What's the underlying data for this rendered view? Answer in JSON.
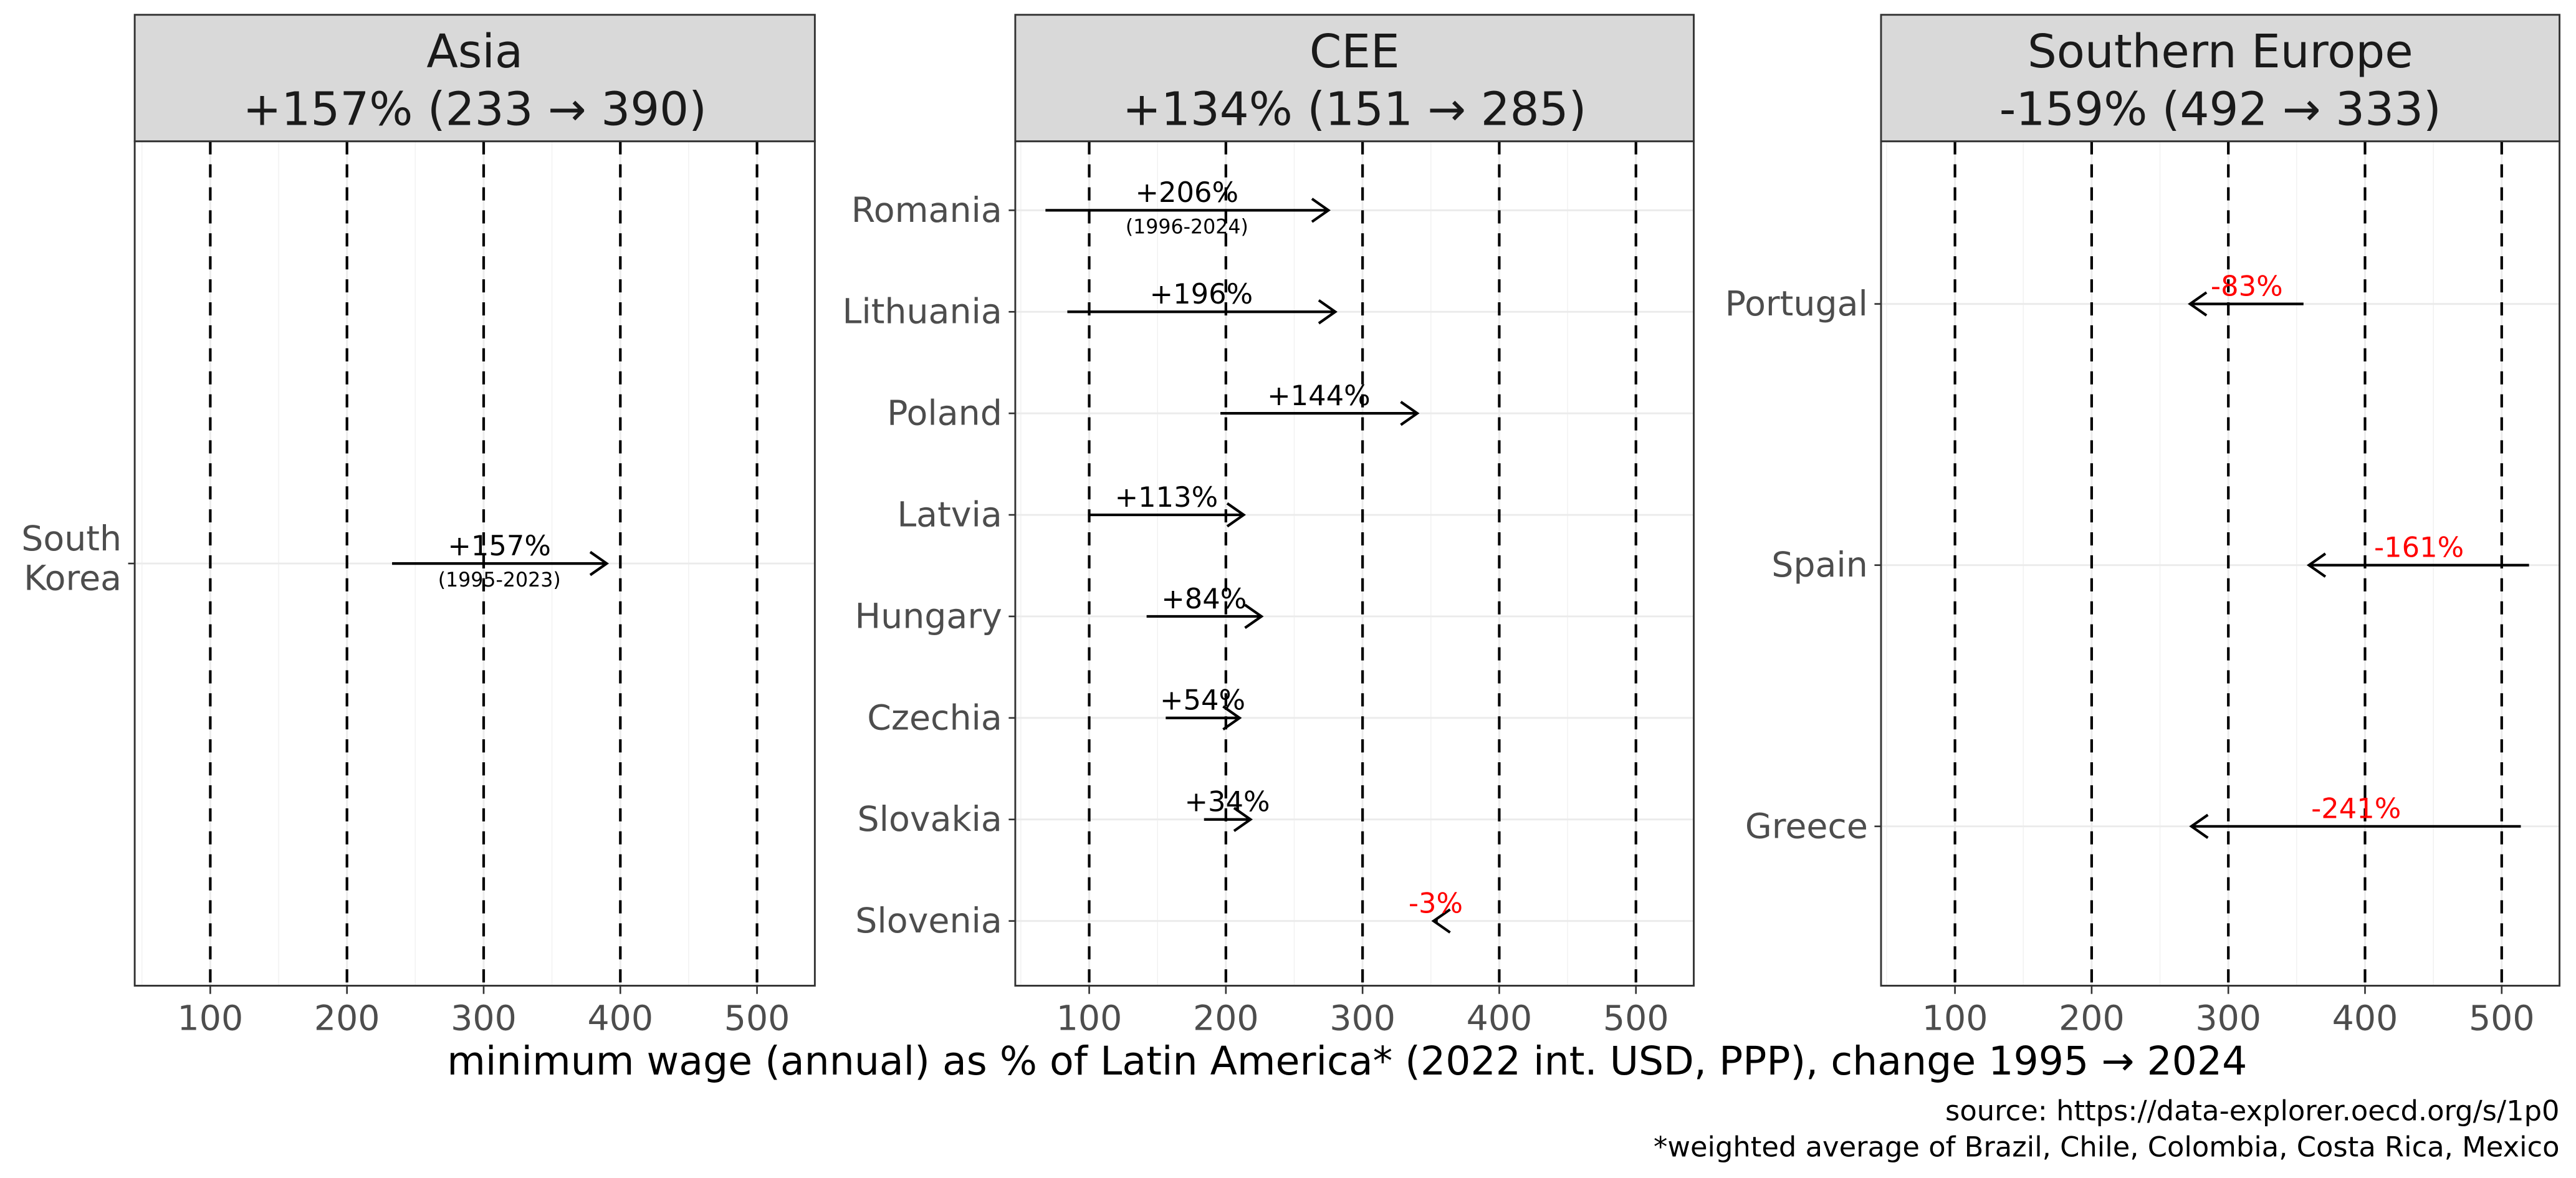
{
  "chart_data": {
    "type": "arrow-dumbbell (faceted)",
    "xlabel": "minimum wage (annual) as % of Latin America* (2022 int. USD, PPP), change 1995 → 2024",
    "xticks": [
      100,
      200,
      300,
      400,
      500
    ],
    "xlim": [
      45,
      545
    ],
    "grid": true,
    "reference_lines": {
      "style": "dashed",
      "color": "#000000",
      "x": [
        100,
        200,
        300,
        400,
        500
      ]
    },
    "colors": {
      "increase_label": "#000000",
      "decrease_label": "#ff0000",
      "arrow": "#000000",
      "strip_bg": "#d9d9d9"
    },
    "caption": [
      "source: https://data-explorer.oecd.org/s/1p0",
      "*weighted average of Brazil, Chile, Colombia, Costa Rica, Mexico"
    ],
    "panels": [
      {
        "title": "Asia",
        "subtitle": "+157% (233 → 390)",
        "rows": [
          {
            "country": "South Korea",
            "label_lines": [
              "South",
              "Korea"
            ],
            "start": 233,
            "end": 390,
            "change": "+157%",
            "note": "(1995-2023)"
          }
        ]
      },
      {
        "title": "CEE",
        "subtitle": "+134% (151 → 285)",
        "rows": [
          {
            "country": "Romania",
            "start": 68,
            "end": 275,
            "change": "+206%",
            "note": "(1996-2024)"
          },
          {
            "country": "Lithuania",
            "start": 84,
            "end": 280,
            "change": "+196%",
            "note": ""
          },
          {
            "country": "Poland",
            "start": 196,
            "end": 340,
            "change": "+144%",
            "note": ""
          },
          {
            "country": "Latvia",
            "start": 100,
            "end": 213,
            "change": "+113%",
            "note": ""
          },
          {
            "country": "Hungary",
            "start": 142,
            "end": 226,
            "change": "+84%",
            "note": ""
          },
          {
            "country": "Czechia",
            "start": 156,
            "end": 210,
            "change": "+54%",
            "note": ""
          },
          {
            "country": "Slovakia",
            "start": 184,
            "end": 218,
            "change": "+34%",
            "note": ""
          },
          {
            "country": "Slovenia",
            "start": 355,
            "end": 352,
            "change": "-3%",
            "note": ""
          }
        ]
      },
      {
        "title": "Southern Europe",
        "subtitle": "-159% (492 → 333)",
        "rows": [
          {
            "country": "Portugal",
            "start": 355,
            "end": 272,
            "change": "-83%",
            "note": ""
          },
          {
            "country": "Spain",
            "start": 520,
            "end": 359,
            "change": "-161%",
            "note": ""
          },
          {
            "country": "Greece",
            "start": 514,
            "end": 273,
            "change": "-241%",
            "note": ""
          }
        ]
      }
    ]
  }
}
